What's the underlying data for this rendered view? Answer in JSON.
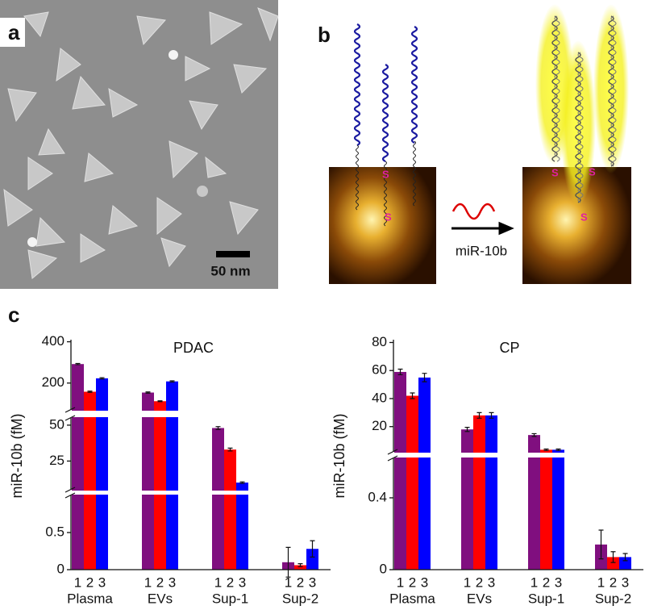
{
  "panel_labels": {
    "a": "a",
    "b": "b",
    "c": "c"
  },
  "image_a": {
    "scale_bar": "50 nm"
  },
  "diagram_b": {
    "s_labels": [
      "S",
      "S",
      "S",
      "S",
      "S"
    ],
    "arrow_label": "miR-10b"
  },
  "chart_data": [
    {
      "type": "bar",
      "title": "PDAC",
      "y_label": "miR-10b (fM)",
      "categories": [
        "Plasma",
        "EVs",
        "Sup-1",
        "Sup-2"
      ],
      "series": [
        {
          "name": "1",
          "color": "#800f7f",
          "values": [
            292,
            154,
            48,
            0.1
          ],
          "errors": [
            3,
            3,
            1,
            0.2
          ]
        },
        {
          "name": "2",
          "color": "#ff0000",
          "values": [
            158,
            112,
            33,
            0.06
          ],
          "errors": [
            3,
            2,
            1,
            0.02
          ]
        },
        {
          "name": "3",
          "color": "#0000ff",
          "values": [
            223,
            208,
            10,
            0.28
          ],
          "errors": [
            3,
            3,
            0.5,
            0.11
          ]
        }
      ],
      "y_segments": [
        {
          "ylim": [
            0,
            1
          ],
          "yticks": [
            0,
            0.5
          ]
        },
        {
          "ylim": [
            5,
            55
          ],
          "yticks": [
            25,
            50
          ]
        },
        {
          "ylim": [
            70,
            410
          ],
          "yticks": [
            200,
            400
          ]
        }
      ]
    },
    {
      "type": "bar",
      "title": "CP",
      "y_label": "miR-10b (fM)",
      "categories": [
        "Plasma",
        "EVs",
        "Sup-1",
        "Sup-2"
      ],
      "series": [
        {
          "name": "1",
          "color": "#800f7f",
          "values": [
            59,
            18,
            14,
            0.14
          ],
          "errors": [
            2,
            1.5,
            1,
            0.08
          ]
        },
        {
          "name": "2",
          "color": "#ff0000",
          "values": [
            42,
            28,
            3.5,
            0.07
          ],
          "errors": [
            2,
            2,
            0.5,
            0.03
          ]
        },
        {
          "name": "3",
          "color": "#0000ff",
          "values": [
            55,
            28,
            3.5,
            0.07
          ],
          "errors": [
            3,
            2,
            0.5,
            0.02
          ]
        }
      ],
      "y_segments": [
        {
          "ylim": [
            0,
            0.62
          ],
          "yticks": [
            0,
            0.4
          ]
        },
        {
          "ylim": [
            2,
            82
          ],
          "yticks": [
            20,
            40,
            60,
            80
          ]
        }
      ]
    }
  ]
}
